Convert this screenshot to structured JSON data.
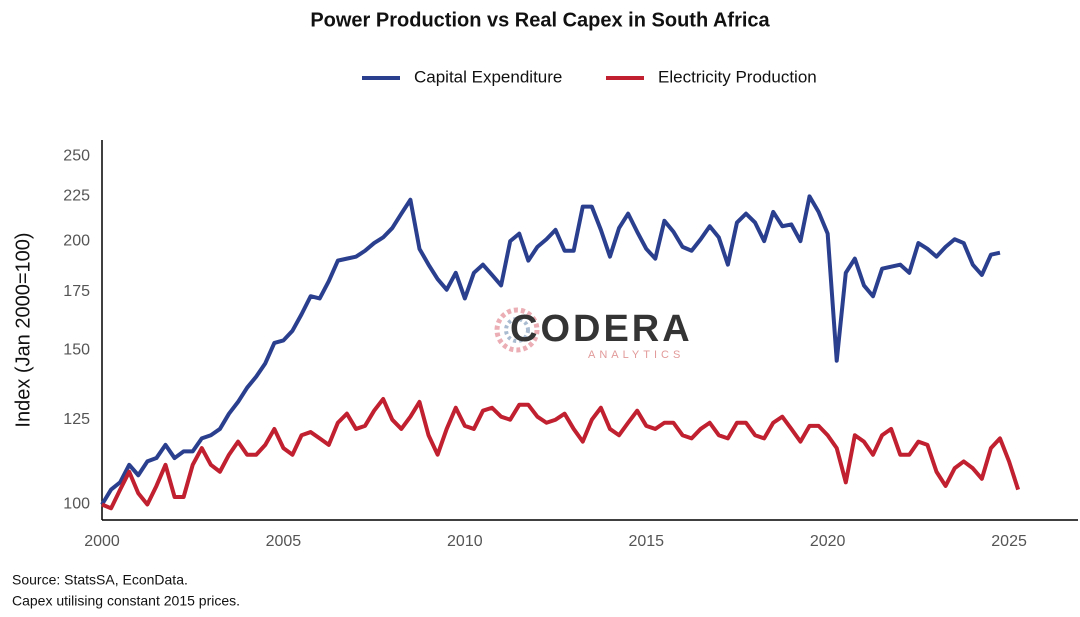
{
  "chart_data": {
    "type": "line",
    "title": "Power Production vs Real Capex in South Africa",
    "y_label": "Index (Jan 2000=100)",
    "log_scale_y": true,
    "grid": false,
    "legend": "top",
    "watermark": {
      "name": "CODERA",
      "sub": "ANALYTICS"
    },
    "notes": [
      "Source: StatsSA, EconData.",
      "Capex utilising constant 2015 prices."
    ],
    "xlim": [
      2000,
      2026.9
    ],
    "xticks": [
      2000,
      2005,
      2010,
      2015,
      2020,
      2025
    ],
    "ylim": [
      96,
      261
    ],
    "yticks": [
      100,
      125,
      150,
      175,
      200,
      225,
      250
    ],
    "x": [
      2000,
      2000.25,
      2000.5,
      2000.75,
      2001,
      2001.25,
      2001.5,
      2001.75,
      2002,
      2002.25,
      2002.5,
      2002.75,
      2003,
      2003.25,
      2003.5,
      2003.75,
      2004,
      2004.25,
      2004.5,
      2004.75,
      2005,
      2005.25,
      2005.5,
      2005.75,
      2006,
      2006.25,
      2006.5,
      2006.75,
      2007,
      2007.25,
      2007.5,
      2007.75,
      2008,
      2008.25,
      2008.5,
      2008.75,
      2009,
      2009.25,
      2009.5,
      2009.75,
      2010,
      2010.25,
      2010.5,
      2010.75,
      2011,
      2011.25,
      2011.5,
      2011.75,
      2012,
      2012.25,
      2012.5,
      2012.75,
      2013,
      2013.25,
      2013.5,
      2013.75,
      2014,
      2014.25,
      2014.5,
      2014.75,
      2015,
      2015.25,
      2015.5,
      2015.75,
      2016,
      2016.25,
      2016.5,
      2016.75,
      2017,
      2017.25,
      2017.5,
      2017.75,
      2018,
      2018.25,
      2018.5,
      2018.75,
      2019,
      2019.25,
      2019.5,
      2019.75,
      2020,
      2020.25,
      2020.5,
      2020.75,
      2021,
      2021.25,
      2021.5,
      2021.75,
      2022,
      2022.25,
      2022.5,
      2022.75,
      2023,
      2023.25,
      2023.5,
      2023.75,
      2024,
      2024.25,
      2024.5,
      2024.75,
      2025,
      2025.25
    ],
    "series": [
      {
        "name": "Capital Expenditure",
        "color": "#2b3f8f",
        "values": [
          100,
          104,
          106,
          111,
          108,
          112,
          113,
          117,
          113,
          115,
          115,
          119,
          120,
          122,
          127,
          131,
          136,
          140,
          145,
          153,
          154,
          158,
          165,
          173,
          172,
          180,
          190,
          191,
          192,
          195,
          199,
          202,
          207,
          215,
          223,
          196,
          188,
          181,
          176,
          184,
          172,
          184,
          188,
          183,
          178,
          200,
          204,
          190,
          197,
          201,
          206,
          195,
          195,
          219,
          219,
          206,
          192,
          207,
          215,
          205,
          196,
          191,
          211,
          205,
          197,
          195,
          201,
          208,
          202,
          188,
          210,
          215,
          210,
          200,
          216,
          208,
          209,
          200,
          225,
          216,
          204,
          146,
          184,
          191,
          178,
          173,
          186,
          187,
          188,
          184,
          199,
          196,
          192,
          197,
          201,
          199,
          188,
          183,
          193,
          194,
          null,
          null
        ]
      },
      {
        "name": "Electricity Production",
        "color": "#c0202f",
        "values": [
          100,
          99,
          104,
          109,
          103,
          100,
          105,
          111,
          102,
          102,
          111,
          116,
          111,
          109,
          114,
          118,
          114,
          114,
          117,
          122,
          116,
          114,
          120,
          121,
          119,
          117,
          124,
          127,
          122,
          123,
          128,
          132,
          125,
          122,
          126,
          131,
          120,
          114,
          122,
          129,
          123,
          122,
          128,
          129,
          126,
          125,
          130,
          130,
          126,
          124,
          125,
          127,
          122,
          118,
          125,
          129,
          122,
          120,
          124,
          128,
          123,
          122,
          124,
          124,
          120,
          119,
          122,
          124,
          120,
          119,
          124,
          124,
          120,
          119,
          124,
          126,
          122,
          118,
          123,
          123,
          120,
          116,
          106,
          120,
          118,
          114,
          120,
          122,
          114,
          114,
          118,
          117,
          109,
          105,
          110,
          112,
          110,
          107,
          116,
          119,
          112,
          104
        ]
      }
    ]
  }
}
